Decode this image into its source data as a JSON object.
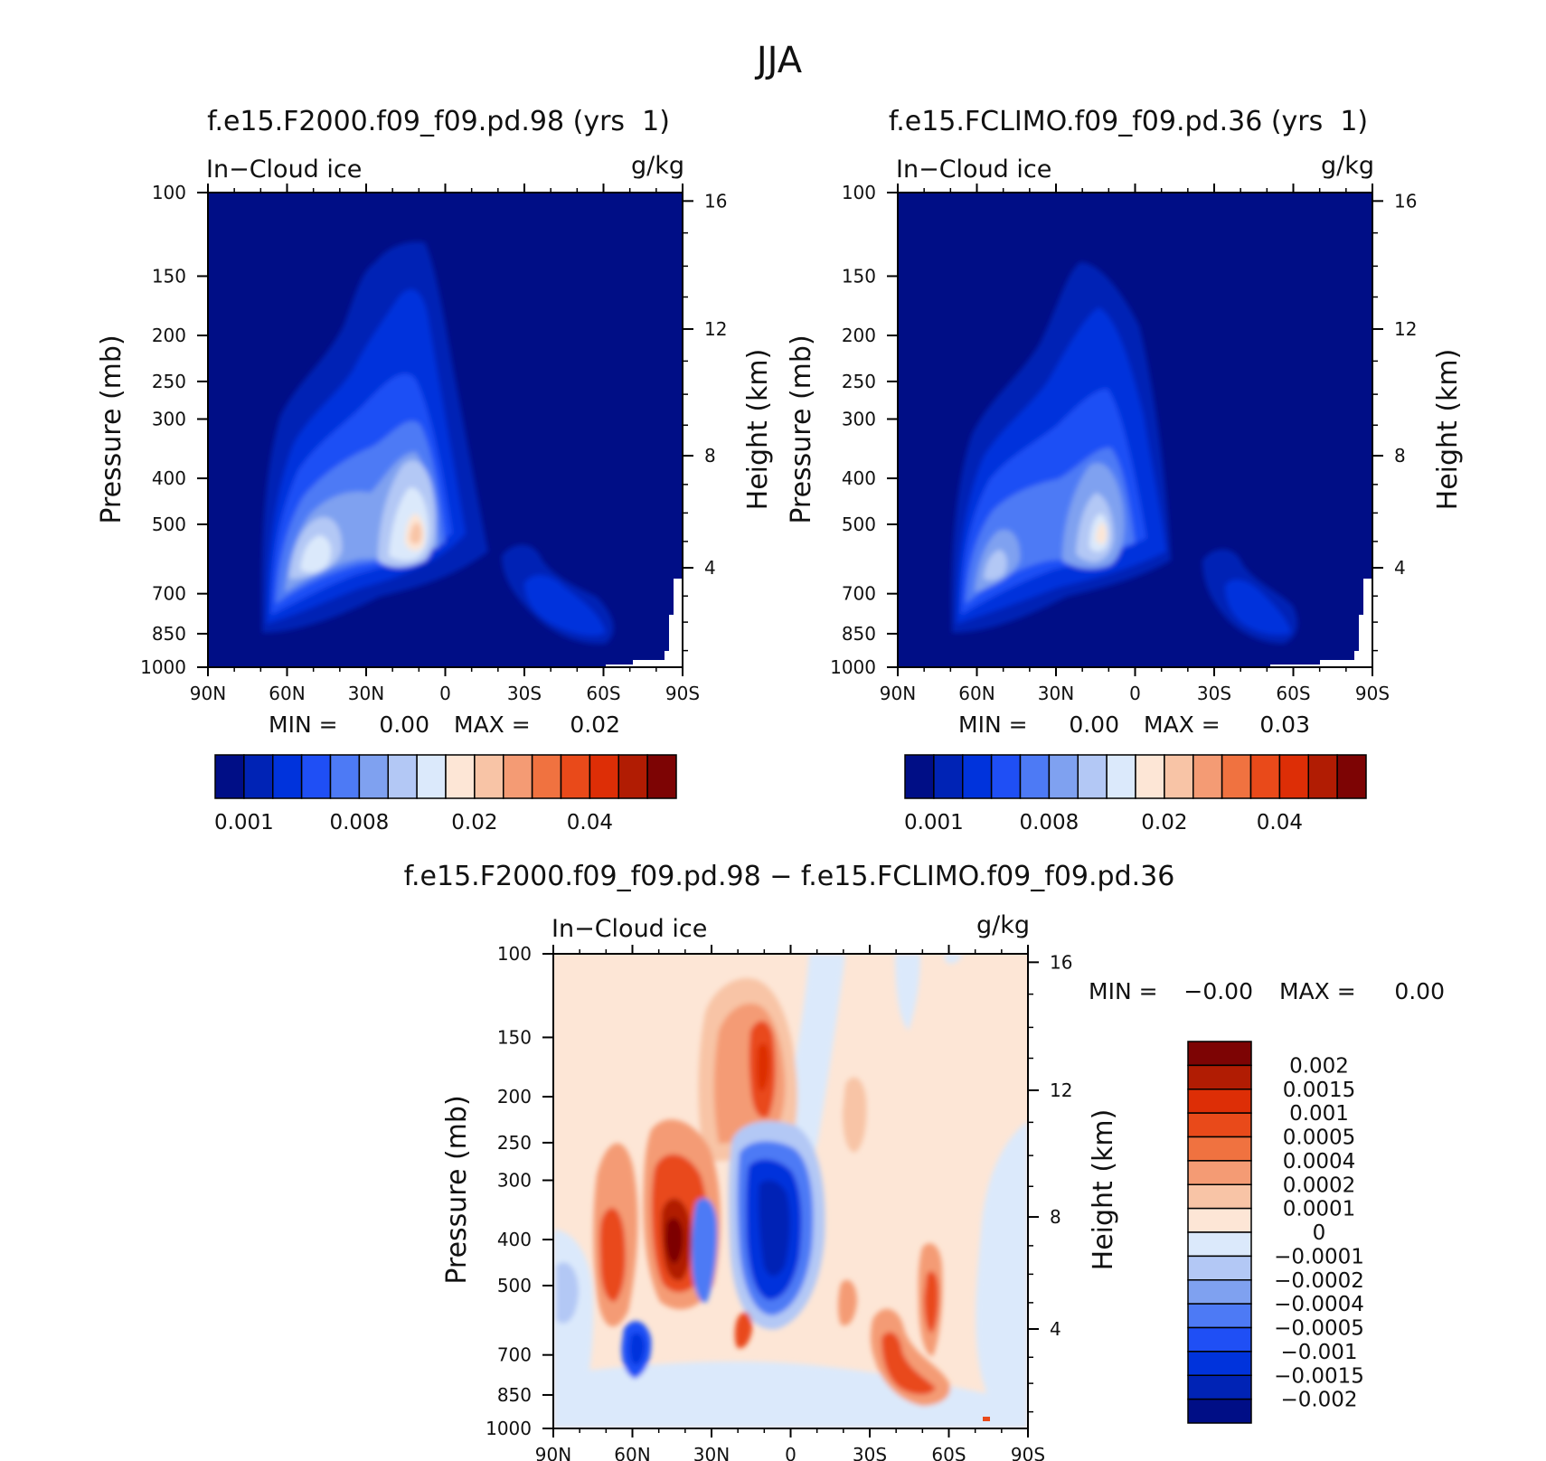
{
  "title": "JJA",
  "colors": {
    "seq": [
      "#000e86",
      "#0023b5",
      "#0033dc",
      "#1f4ff5",
      "#4d7af5",
      "#7fa1f0",
      "#b3c8f5",
      "#dbe9fb",
      "#fde6d6",
      "#f8c4a6",
      "#f49b74",
      "#f07240",
      "#e94a1a",
      "#dd2e06",
      "#b11c03",
      "#7d0404"
    ],
    "div": [
      "#000e86",
      "#0023b5",
      "#0033dc",
      "#1f4ff5",
      "#4d7af5",
      "#7fa1f0",
      "#b3c8f5",
      "#dbe9fb",
      "#fde6d6",
      "#f8c4a6",
      "#f49b74",
      "#f07240",
      "#e94a1a",
      "#dd2e06",
      "#b11c03",
      "#7d0404"
    ]
  },
  "chart_data": [
    {
      "type": "heatmap",
      "title": "f.e15.F2000.f09_f09.pd.98 (yrs  1)",
      "left_label": "In−Cloud ice",
      "right_label": "g/kg",
      "xlabel": "",
      "ylabel": "Pressure (mb)",
      "y2label": "Height (km)",
      "x_ticks": [
        "90N",
        "60N",
        "30N",
        "0",
        "30S",
        "60S",
        "90S"
      ],
      "y_ticks": [
        "100",
        "150",
        "200",
        "250",
        "300",
        "400",
        "500",
        "700",
        "850",
        "1000"
      ],
      "y2_ticks": [
        "16",
        "12",
        "8",
        "4"
      ],
      "min_text": "MIN =",
      "min_value": "0.00",
      "max_text": "MAX =",
      "max_value": "0.02",
      "colorbar_labels": [
        "0.001",
        "0.008",
        "0.02",
        "0.04"
      ]
    },
    {
      "type": "heatmap",
      "title": "f.e15.FCLIMO.f09_f09.pd.36 (yrs  1)",
      "left_label": "In−Cloud ice",
      "right_label": "g/kg",
      "xlabel": "",
      "ylabel": "Pressure (mb)",
      "y2label": "Height (km)",
      "x_ticks": [
        "90N",
        "60N",
        "30N",
        "0",
        "30S",
        "60S",
        "90S"
      ],
      "y_ticks": [
        "100",
        "150",
        "200",
        "250",
        "300",
        "400",
        "500",
        "700",
        "850",
        "1000"
      ],
      "y2_ticks": [
        "16",
        "12",
        "8",
        "4"
      ],
      "min_text": "MIN =",
      "min_value": "0.00",
      "max_text": "MAX =",
      "max_value": "0.03",
      "colorbar_labels": [
        "0.001",
        "0.008",
        "0.02",
        "0.04"
      ]
    },
    {
      "type": "heatmap",
      "title": "f.e15.F2000.f09_f09.pd.98 − f.e15.FCLIMO.f09_f09.pd.36",
      "left_label": "In−Cloud ice",
      "right_label": "g/kg",
      "xlabel": "",
      "ylabel": "Pressure (mb)",
      "y2label": "Height (km)",
      "x_ticks": [
        "90N",
        "60N",
        "30N",
        "0",
        "30S",
        "60S",
        "90S"
      ],
      "y_ticks": [
        "100",
        "150",
        "200",
        "250",
        "300",
        "400",
        "500",
        "700",
        "850",
        "1000"
      ],
      "y2_ticks": [
        "16",
        "12",
        "8",
        "4"
      ],
      "min_text": "MIN =",
      "min_value": "−0.00",
      "max_text": "MAX =",
      "max_value": "0.00",
      "colorbar_labels": [
        "0.002",
        "0.0015",
        "0.001",
        "0.0005",
        "0.0004",
        "0.0002",
        "0.0001",
        "0",
        "−0.0001",
        "−0.0002",
        "−0.0004",
        "−0.0005",
        "−0.001",
        "−0.0015",
        "−0.002"
      ]
    }
  ]
}
